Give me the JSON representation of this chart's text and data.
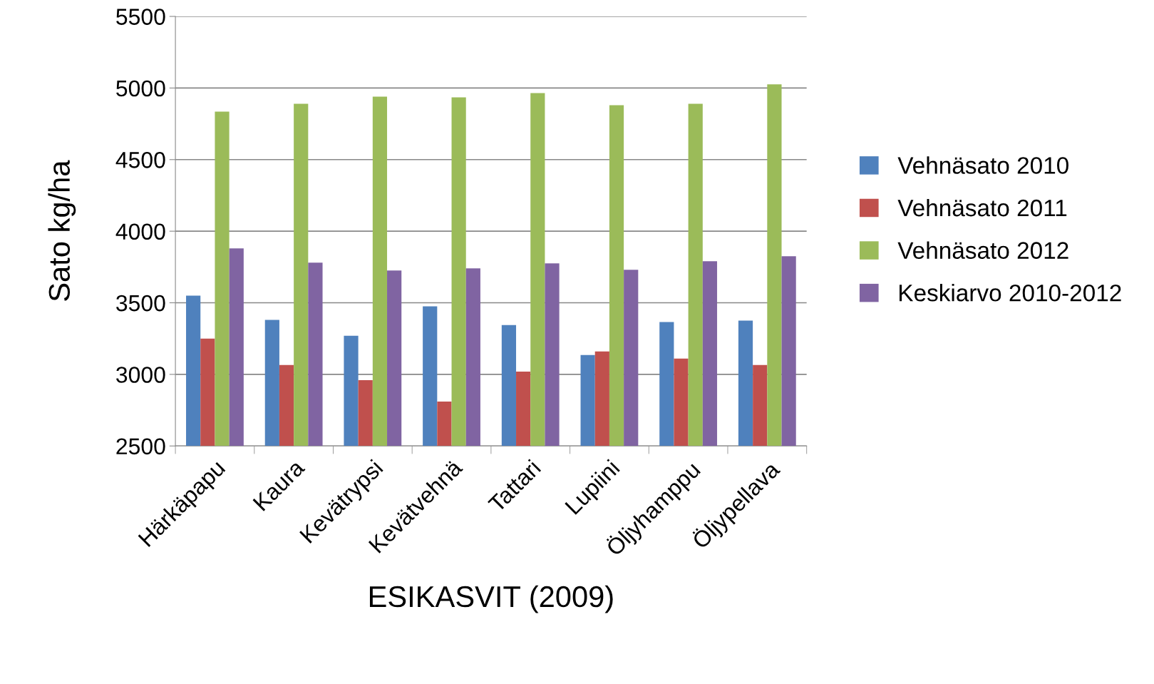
{
  "chart_data": {
    "type": "bar",
    "xlabel": "ESIKASVIT (2009)",
    "ylabel": "Sato kg/ha",
    "categories": [
      "Härkäpapu",
      "Kaura",
      "Kevätrypsi",
      "Kevätvehnä",
      "Tattari",
      "Lupiini",
      "Öljyhamppu",
      "Öljypellava"
    ],
    "series": [
      {
        "name": "Vehnäsato 2010",
        "color": "#4f81bd",
        "values": [
          3550,
          3380,
          3270,
          3475,
          3345,
          3135,
          3365,
          3375
        ]
      },
      {
        "name": "Vehnäsato 2011",
        "color": "#c0504d",
        "values": [
          3250,
          3065,
          2960,
          2810,
          3020,
          3160,
          3110,
          3065
        ]
      },
      {
        "name": "Vehnäsato 2012",
        "color": "#9bbb59",
        "values": [
          4835,
          4890,
          4940,
          4935,
          4965,
          4880,
          4890,
          5025
        ]
      },
      {
        "name": "Keskiarvo 2010-2012",
        "color": "#8064a2",
        "values": [
          3880,
          3780,
          3725,
          3740,
          3775,
          3730,
          3790,
          3825
        ]
      }
    ],
    "ylim": [
      2500,
      5500
    ],
    "yticks": [
      2500,
      3000,
      3500,
      4000,
      4500,
      5000,
      5500
    ],
    "grid": "y",
    "legend": "right"
  }
}
